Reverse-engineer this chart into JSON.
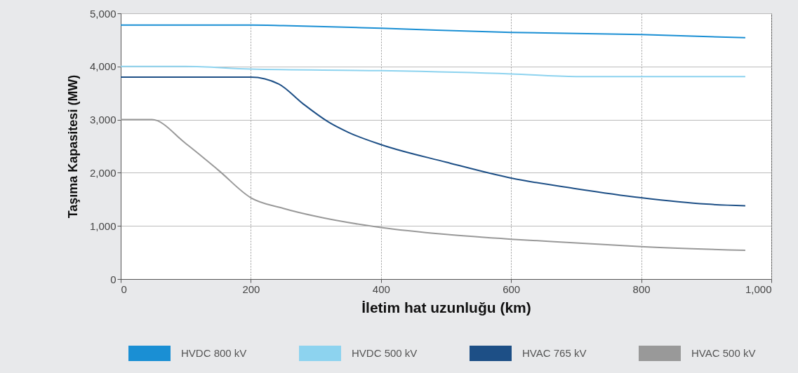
{
  "chart_data": {
    "type": "line",
    "xlabel": "İletim hat uzunluğu (km)",
    "ylabel": "Taşıma Kapasitesi (MW)",
    "xlim": [
      0,
      1000
    ],
    "xticks": [
      0,
      200,
      400,
      600,
      800,
      {
        "value": 1000,
        "label": "1,000"
      }
    ],
    "ylim": [
      0,
      5000
    ],
    "yticks": [
      0,
      {
        "value": 1000,
        "label": "1,000"
      },
      {
        "value": 2000,
        "label": "2,000"
      },
      {
        "value": 3000,
        "label": "3,000"
      },
      {
        "value": 4000,
        "label": "4,000"
      },
      {
        "value": 5000,
        "label": "5,000"
      }
    ],
    "grid": true,
    "legend": "bottom",
    "marker": "none",
    "line_style": "solid",
    "series": [
      {
        "name": "HVDC 800 kV",
        "color": "#1a8fd4",
        "x": [
          0,
          200,
          250,
          400,
          600,
          800,
          960
        ],
        "values": [
          4780,
          4780,
          4770,
          4720,
          4640,
          4600,
          4540
        ]
      },
      {
        "name": "HVDC 500 kV",
        "color": "#8dd3ef",
        "x": [
          0,
          100,
          200,
          400,
          600,
          700,
          800,
          960
        ],
        "values": [
          4000,
          4000,
          3950,
          3920,
          3860,
          3810,
          3810,
          3810
        ]
      },
      {
        "name": "HVAC 765 kV",
        "color": "#1d4f86",
        "x": [
          0,
          200,
          243,
          280,
          320,
          350,
          400,
          500,
          600,
          700,
          800,
          900,
          960
        ],
        "values": [
          3800,
          3800,
          3670,
          3300,
          2950,
          2760,
          2530,
          2200,
          1900,
          1700,
          1530,
          1410,
          1380
        ]
      },
      {
        "name": "HVAC 500 kV",
        "color": "#999999",
        "x": [
          0,
          48,
          100,
          150,
          200,
          250,
          300,
          400,
          500,
          600,
          700,
          800,
          960
        ],
        "values": [
          3000,
          3000,
          2550,
          2050,
          1530,
          1330,
          1180,
          970,
          840,
          750,
          680,
          610,
          540
        ]
      }
    ]
  }
}
